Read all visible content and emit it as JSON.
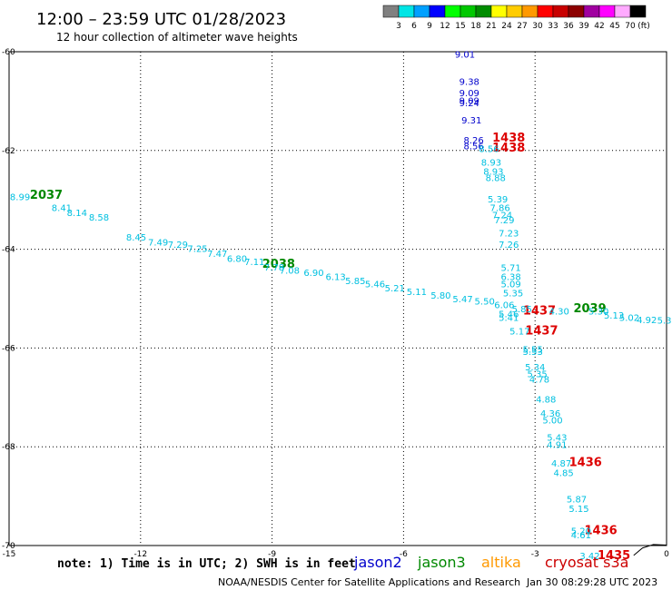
{
  "header": {
    "title": "12:00 – 23:59 UTC 01/28/2023",
    "subtitle": "12 hour collection of altimeter wave heights"
  },
  "colorbar": {
    "colors": [
      "#808080",
      "#00e5e5",
      "#00a0ff",
      "#0000ff",
      "#00ff00",
      "#00c800",
      "#008c00",
      "#ffff00",
      "#ffcc00",
      "#ff9900",
      "#ff0000",
      "#c80000",
      "#8c0000",
      "#a000a0",
      "#ff00ff",
      "#ffaaff",
      "#000000"
    ],
    "labels": [
      "3",
      "6",
      "9",
      "12",
      "15",
      "18",
      "21",
      "24",
      "27",
      "30",
      "33",
      "36",
      "39",
      "42",
      "45",
      "70"
    ],
    "unit": "(ft)"
  },
  "chart_data": {
    "type": "scatter",
    "xlim": [
      -15,
      0
    ],
    "ylim": [
      -70,
      -60
    ],
    "x_ticks": [
      "-15",
      "-12",
      "-9",
      "-6",
      "-3",
      "0"
    ],
    "y_ticks": [
      "-60",
      "-62",
      "-64",
      "-66",
      "-68",
      "-70"
    ],
    "grid": true,
    "series": [
      {
        "name": "jason2",
        "color": "#0000cc",
        "points": [
          {
            "x": -4.6,
            "y": -60.05,
            "v": "9.01"
          },
          {
            "x": -4.5,
            "y": -60.6,
            "v": "9.38"
          },
          {
            "x": -4.5,
            "y": -60.83,
            "v": "9.09"
          },
          {
            "x": -4.5,
            "y": -60.98,
            "v": "9.09"
          },
          {
            "x": -4.5,
            "y": -61.03,
            "v": "9.24"
          },
          {
            "x": -4.45,
            "y": -61.38,
            "v": "9.31"
          },
          {
            "x": -4.4,
            "y": -61.78,
            "v": "8.26"
          },
          {
            "x": -4.4,
            "y": -61.9,
            "v": "8.56"
          }
        ]
      },
      {
        "name": "jason3",
        "color": "#008800",
        "points": [
          {
            "x": -14.15,
            "y": -62.9,
            "v": "2037"
          },
          {
            "x": -8.85,
            "y": -64.3,
            "v": "2038"
          },
          {
            "x": -1.75,
            "y": -65.2,
            "v": "2039"
          }
        ]
      },
      {
        "name": "cryosat",
        "color": "#dd0000",
        "points": [
          {
            "x": -3.6,
            "y": -61.75,
            "v": "1438"
          },
          {
            "x": -3.6,
            "y": -61.95,
            "v": "1438"
          },
          {
            "x": -2.9,
            "y": -65.25,
            "v": "1437"
          },
          {
            "x": -2.85,
            "y": -65.65,
            "v": "1437"
          },
          {
            "x": -1.85,
            "y": -68.32,
            "v": "1436"
          },
          {
            "x": -1.5,
            "y": -69.7,
            "v": "1436"
          },
          {
            "x": -1.2,
            "y": -70.2,
            "v": "1435"
          }
        ]
      },
      {
        "name": "s3a",
        "color": "#00c0e0",
        "points": [
          {
            "x": -14.75,
            "y": -62.93,
            "v": "8.99"
          },
          {
            "x": -13.8,
            "y": -63.15,
            "v": "8.41"
          },
          {
            "x": -13.45,
            "y": -63.25,
            "v": "8.14"
          },
          {
            "x": -12.95,
            "y": -63.35,
            "v": "8.58"
          },
          {
            "x": -12.1,
            "y": -63.75,
            "v": "8.45"
          },
          {
            "x": -11.6,
            "y": -63.85,
            "v": "7.49"
          },
          {
            "x": -11.15,
            "y": -63.9,
            "v": "7.29"
          },
          {
            "x": -10.7,
            "y": -63.98,
            "v": "7.25"
          },
          {
            "x": -10.25,
            "y": -64.08,
            "v": "7.47"
          },
          {
            "x": -9.8,
            "y": -64.18,
            "v": "6.80"
          },
          {
            "x": -9.4,
            "y": -64.25,
            "v": "7.11"
          },
          {
            "x": -8.95,
            "y": -64.36,
            "v": "7.78"
          },
          {
            "x": -8.6,
            "y": -64.42,
            "v": "7.08"
          },
          {
            "x": -8.05,
            "y": -64.47,
            "v": "6.90"
          },
          {
            "x": -7.55,
            "y": -64.55,
            "v": "6.13"
          },
          {
            "x": -7.1,
            "y": -64.63,
            "v": "5.85"
          },
          {
            "x": -6.65,
            "y": -64.7,
            "v": "5.46"
          },
          {
            "x": -6.2,
            "y": -64.78,
            "v": "5.21"
          },
          {
            "x": -5.7,
            "y": -64.85,
            "v": "5.11"
          },
          {
            "x": -5.15,
            "y": -64.93,
            "v": "5.80"
          },
          {
            "x": -4.65,
            "y": -65.0,
            "v": "5.47"
          },
          {
            "x": -4.15,
            "y": -65.05,
            "v": "5.50"
          },
          {
            "x": -3.7,
            "y": -65.12,
            "v": "6.06"
          },
          {
            "x": -3.3,
            "y": -65.2,
            "v": "5.85"
          },
          {
            "x": -3.6,
            "y": -65.3,
            "v": "5.46"
          },
          {
            "x": -3.6,
            "y": -65.38,
            "v": "5.41"
          },
          {
            "x": -2.45,
            "y": -65.25,
            "v": "4.30"
          },
          {
            "x": -1.55,
            "y": -65.25,
            "v": "5.30"
          },
          {
            "x": -1.2,
            "y": -65.33,
            "v": "5.13"
          },
          {
            "x": -0.85,
            "y": -65.38,
            "v": "5.02"
          },
          {
            "x": -0.45,
            "y": -65.42,
            "v": "4.92"
          },
          {
            "x": -0.05,
            "y": -65.43,
            "v": "5.3"
          },
          {
            "x": -4.05,
            "y": -61.96,
            "v": "8.56"
          },
          {
            "x": -4.0,
            "y": -62.23,
            "v": "8.93"
          },
          {
            "x": -3.95,
            "y": -62.42,
            "v": "8.93"
          },
          {
            "x": -3.9,
            "y": -62.55,
            "v": "8.88"
          },
          {
            "x": -3.85,
            "y": -62.98,
            "v": "5.39"
          },
          {
            "x": -3.8,
            "y": -63.15,
            "v": "7.86"
          },
          {
            "x": -3.75,
            "y": -63.3,
            "v": "7.24"
          },
          {
            "x": -3.7,
            "y": -63.4,
            "v": "7.29"
          },
          {
            "x": -3.6,
            "y": -63.67,
            "v": "7.23"
          },
          {
            "x": -3.6,
            "y": -63.9,
            "v": "7.26"
          },
          {
            "x": -3.55,
            "y": -64.37,
            "v": "5.71"
          },
          {
            "x": -3.55,
            "y": -64.55,
            "v": "6.38"
          },
          {
            "x": -3.55,
            "y": -64.7,
            "v": "5.09"
          },
          {
            "x": -3.5,
            "y": -64.88,
            "v": "5.35"
          },
          {
            "x": -3.35,
            "y": -65.65,
            "v": "5.17"
          },
          {
            "x": -3.05,
            "y": -66.02,
            "v": "5.55"
          },
          {
            "x": -3.05,
            "y": -66.07,
            "v": "5.53"
          },
          {
            "x": -3.0,
            "y": -66.38,
            "v": "5.34"
          },
          {
            "x": -2.95,
            "y": -66.52,
            "v": "5.35"
          },
          {
            "x": -2.9,
            "y": -66.63,
            "v": "4.78"
          },
          {
            "x": -2.75,
            "y": -67.03,
            "v": "4.88"
          },
          {
            "x": -2.65,
            "y": -67.32,
            "v": "4.36"
          },
          {
            "x": -2.6,
            "y": -67.45,
            "v": "5.00"
          },
          {
            "x": -2.5,
            "y": -67.8,
            "v": "5.43"
          },
          {
            "x": -2.5,
            "y": -67.95,
            "v": "4.91"
          },
          {
            "x": -2.4,
            "y": -68.33,
            "v": "4.87"
          },
          {
            "x": -2.35,
            "y": -68.52,
            "v": "4.85"
          },
          {
            "x": -2.05,
            "y": -69.05,
            "v": "5.87"
          },
          {
            "x": -2.0,
            "y": -69.25,
            "v": "5.15"
          },
          {
            "x": -1.95,
            "y": -69.7,
            "v": "5.20"
          },
          {
            "x": -1.95,
            "y": -69.78,
            "v": "4.61"
          },
          {
            "x": -1.75,
            "y": -70.2,
            "v": "3.42"
          }
        ]
      }
    ],
    "land_outline": [
      [
        -0.75,
        -70.2
      ],
      [
        -0.55,
        -70.05
      ],
      [
        -0.3,
        -69.98
      ],
      [
        0,
        -69.99
      ]
    ]
  },
  "footer": {
    "note": "note: 1) Time is in UTC; 2) SWH is in feet",
    "legend": [
      {
        "label": "jason2",
        "color": "#0000cc"
      },
      {
        "label": "jason3",
        "color": "#008800"
      },
      {
        "label": "altika",
        "color": "#ff9900"
      },
      {
        "label": "cryosat s3a",
        "color": "#cc0000"
      }
    ],
    "credit": "NOAA/NESDIS Center for Satellite Applications and Research",
    "timestamp": "Jan 30 08:29:28 UTC 2023"
  }
}
